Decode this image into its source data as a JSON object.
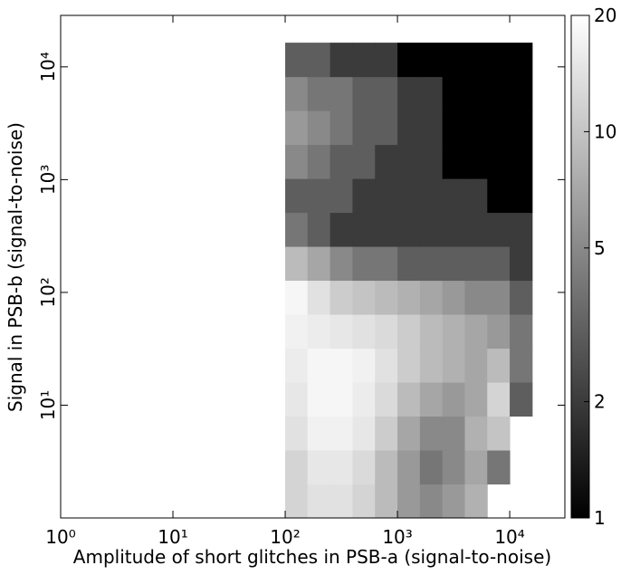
{
  "chart_data": {
    "type": "hist2d",
    "x_label": "Amplitude of short glitches in PSB-a (signal-to-noise)",
    "y_label": "Signal in PSB-b (signal-to-noise)",
    "x_scale": "log",
    "y_scale": "log",
    "xlim": [
      1,
      31000
    ],
    "ylim": [
      1,
      28600
    ],
    "xticks": [
      {
        "value": 1,
        "label": "10⁰"
      },
      {
        "value": 10,
        "label": "10¹"
      },
      {
        "value": 100,
        "label": "10²"
      },
      {
        "value": 1000,
        "label": "10³"
      },
      {
        "value": 10000,
        "label": "10⁴"
      }
    ],
    "yticks": [
      {
        "value": 10,
        "label": "10¹"
      },
      {
        "value": 100,
        "label": "10²"
      },
      {
        "value": 1000,
        "label": "10³"
      },
      {
        "value": 10000,
        "label": "10⁴"
      }
    ],
    "colormap": "gray",
    "color_scale": "log",
    "clim": [
      1,
      20
    ],
    "cticks": [
      1,
      2,
      5,
      10,
      20
    ],
    "x_edges": [
      100,
      158,
      251,
      398,
      631,
      1000,
      1585,
      2512,
      3981,
      6310,
      10000,
      15850
    ],
    "y_edges": [
      1,
      2,
      4,
      8,
      16,
      32,
      64,
      128,
      256,
      512,
      1024,
      2048,
      4096,
      8192,
      16384
    ],
    "values": [
      [
        12,
        14,
        14,
        12,
        9,
        6,
        5,
        6,
        8,
        null,
        null
      ],
      [
        12,
        15,
        15,
        13,
        9,
        6,
        4,
        5,
        7,
        4,
        null
      ],
      [
        14,
        17,
        17,
        15,
        11,
        7,
        5,
        5,
        8,
        10,
        null
      ],
      [
        15,
        18,
        18,
        16,
        13,
        9,
        7,
        6,
        7,
        12,
        3
      ],
      [
        16,
        18,
        18,
        17,
        14,
        11,
        9,
        8,
        7,
        9,
        4
      ],
      [
        17,
        16,
        15,
        14,
        13,
        11,
        9,
        8,
        7,
        6,
        4
      ],
      [
        18,
        14,
        11,
        10,
        9,
        8,
        7,
        6,
        5,
        5,
        3
      ],
      [
        9,
        7,
        5,
        4,
        4,
        3,
        3,
        3,
        3,
        3,
        2
      ],
      [
        4,
        3,
        2,
        2,
        2,
        2,
        2,
        2,
        2,
        2,
        2
      ],
      [
        3,
        3,
        3,
        2,
        2,
        2,
        2,
        2,
        2,
        1,
        1
      ],
      [
        5,
        4,
        3,
        3,
        2,
        2,
        2,
        1,
        1,
        1,
        1
      ],
      [
        6,
        5,
        4,
        3,
        3,
        2,
        2,
        1,
        1,
        1,
        1
      ],
      [
        5,
        4,
        4,
        3,
        3,
        2,
        2,
        1,
        1,
        1,
        1
      ],
      [
        3,
        3,
        2,
        2,
        2,
        1,
        1,
        1,
        1,
        1,
        1
      ]
    ]
  }
}
